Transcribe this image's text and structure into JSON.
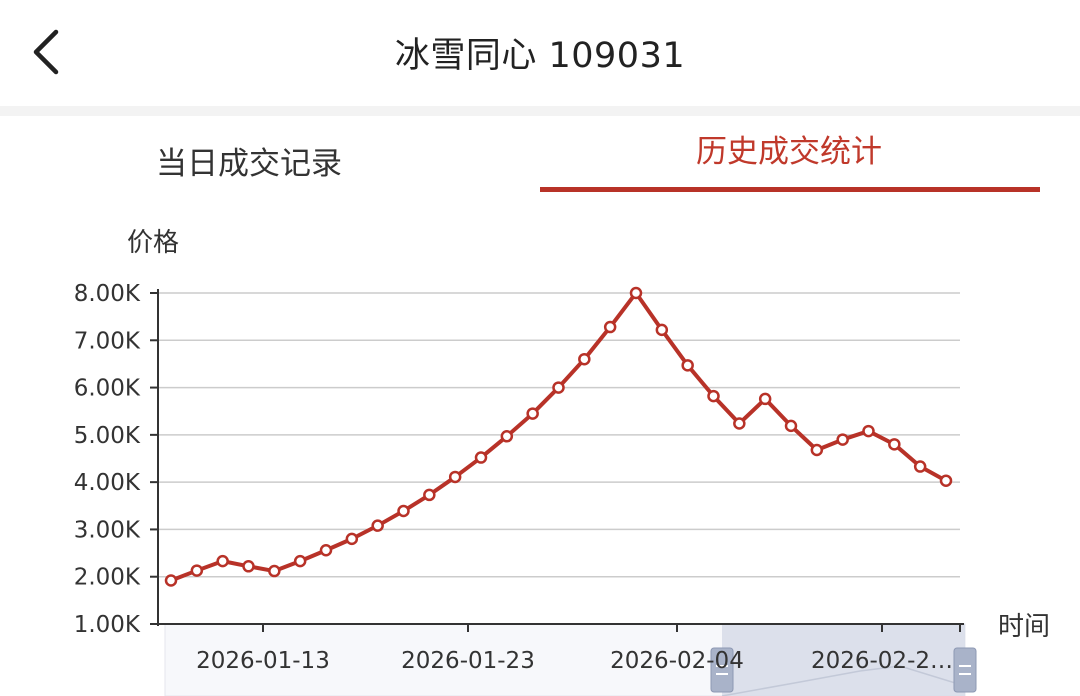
{
  "header": {
    "title": "冰雪同心 109031",
    "back_icon": "chevron-left-icon"
  },
  "tabs": [
    {
      "label": "当日成交记录",
      "active": false
    },
    {
      "label": "历史成交统计",
      "active": true
    }
  ],
  "colors": {
    "accent": "#b83228",
    "line": "#b83228",
    "grid": "#cccccc",
    "slider": "#d7dce8"
  },
  "chart_data": {
    "type": "line",
    "ylabel": "价格",
    "xlabel": "时间",
    "ylim": [
      1000,
      8000
    ],
    "y_ticks": [
      "1.00K",
      "2.00K",
      "3.00K",
      "4.00K",
      "5.00K",
      "6.00K",
      "7.00K",
      "8.00K"
    ],
    "x_ticks": [
      "2026-01-13",
      "2026-01-23",
      "2026-02-04",
      "2026-02-2…"
    ],
    "grid": true,
    "series": [
      {
        "values": [
          1920,
          2130,
          2330,
          2220,
          2120,
          2330,
          2560,
          2800,
          3080,
          3390,
          3730,
          4110,
          4520,
          4970,
          5450,
          6000,
          6600,
          7280,
          8000,
          7220,
          6470,
          5820,
          5240,
          5760,
          5190,
          4680,
          4900,
          5080,
          4800,
          4330,
          4030
        ]
      }
    ]
  }
}
